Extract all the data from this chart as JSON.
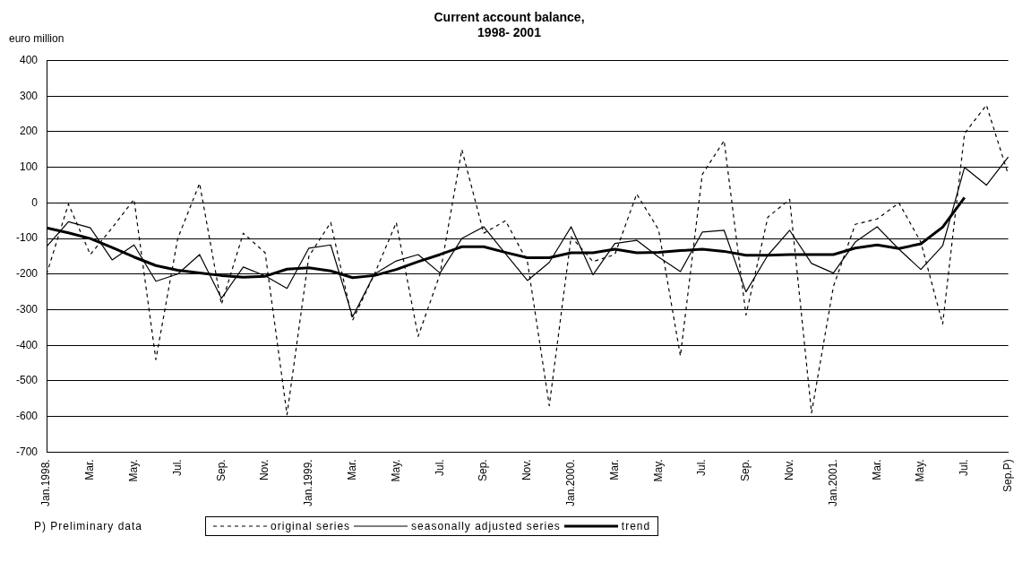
{
  "chart_data": {
    "type": "line",
    "title": "Current account balance,\n1998- 2001",
    "ylabel": "euro million",
    "annotations": [
      "P) Preliminary data"
    ],
    "categories": [
      "Jan.1998.",
      null,
      "Mar.",
      null,
      "May.",
      null,
      "Jul.",
      null,
      "Sep.",
      null,
      "Nov.",
      null,
      "Jan.1999.",
      null,
      "Mar.",
      null,
      "May.",
      null,
      "Jul.",
      null,
      "Sep.",
      null,
      "Nov.",
      null,
      "Jan.2000.",
      null,
      "Mar.",
      null,
      "May.",
      null,
      "Jul.",
      null,
      "Sep.",
      null,
      "Nov.",
      null,
      "Jan.2001.",
      null,
      "Mar.",
      null,
      "May.",
      null,
      "Jul.",
      null,
      "Sep.P)"
    ],
    "series": [
      {
        "name": "original series",
        "color": "#000000",
        "line_style": "dashed",
        "values": [
          -200,
          -3,
          -145,
          -70,
          10,
          -440,
          -100,
          55,
          -285,
          -85,
          -140,
          -595,
          -150,
          -55,
          -330,
          -200,
          -55,
          -375,
          -200,
          150,
          -85,
          -50,
          -165,
          -570,
          -95,
          -165,
          -145,
          25,
          -75,
          -430,
          80,
          175,
          -315,
          -40,
          10,
          -590,
          -235,
          -60,
          -45,
          0,
          -110,
          -340,
          195,
          275,
          80
        ]
      },
      {
        "name": "seasonally adjusted series",
        "color": "#000000",
        "line_style": "solid",
        "values": [
          -123,
          -53,
          -70,
          -160,
          -118,
          -220,
          -200,
          -145,
          -268,
          -180,
          -205,
          -240,
          -127,
          -118,
          -320,
          -200,
          -163,
          -145,
          -197,
          -100,
          -67,
          -143,
          -218,
          -167,
          -67,
          -202,
          -114,
          -105,
          -152,
          -193,
          -82,
          -77,
          -250,
          -147,
          -77,
          -170,
          -197,
          -110,
          -67,
          -130,
          -187,
          -120,
          100,
          50,
          129
        ]
      },
      {
        "name": "trend",
        "color": "#000000",
        "line_style": "solid",
        "values": [
          -70,
          -84,
          -100,
          -125,
          -152,
          -176,
          -189,
          -197,
          -204,
          -209,
          -206,
          -186,
          -182,
          -191,
          -210,
          -204,
          -187,
          -165,
          -145,
          -123,
          -123,
          -139,
          -154,
          -154,
          -140,
          -140,
          -130,
          -140,
          -139,
          -134,
          -130,
          -136,
          -147,
          -147,
          -145,
          -145,
          -145,
          -127,
          -118,
          -128,
          -115,
          -68,
          15,
          null,
          null
        ]
      }
    ],
    "ylim": [
      -700,
      400
    ],
    "yticks": [
      -700,
      -600,
      -500,
      -400,
      -300,
      -200,
      -100,
      0,
      100,
      200,
      300,
      400
    ],
    "grid": "y",
    "legend": "bottom",
    "marker": "none"
  }
}
